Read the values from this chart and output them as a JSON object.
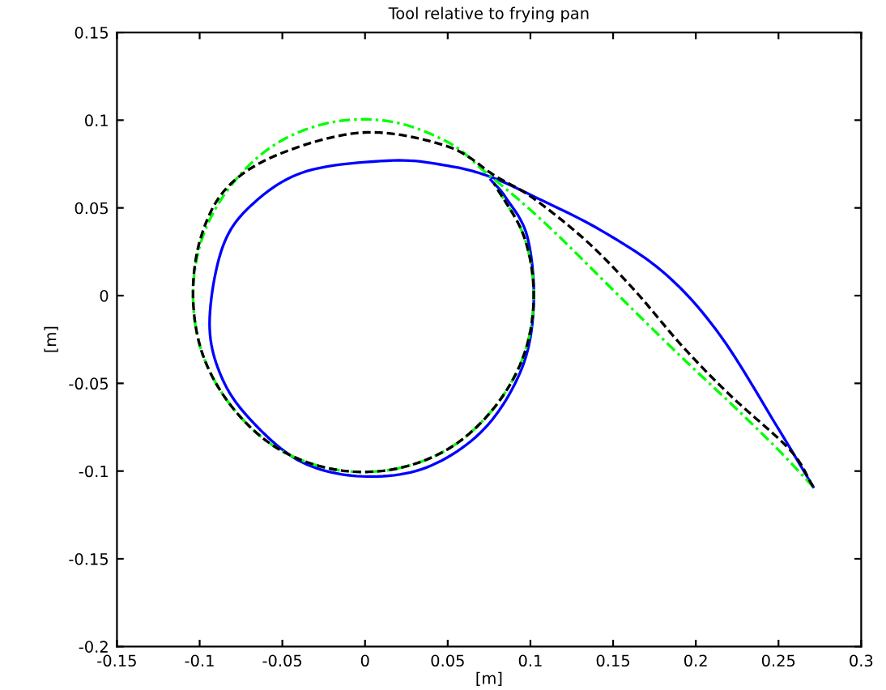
{
  "chart_data": {
    "type": "line",
    "title": "Tool relative to frying pan",
    "xlabel": "[m]",
    "ylabel": "[m]",
    "xlim": [
      -0.15,
      0.3
    ],
    "xticks": [
      -0.15,
      -0.1,
      -0.05,
      0,
      0.05,
      0.1,
      0.15,
      0.2,
      0.25,
      0.3
    ],
    "ylim": [
      -0.2,
      0.15
    ],
    "yticks": [
      -0.2,
      -0.15,
      -0.1,
      -0.05,
      0,
      0.05,
      0.1,
      0.15
    ],
    "grid": false,
    "legend": false,
    "marker": "none",
    "series": [
      {
        "color": "#0000ff",
        "line_style": "solid",
        "x": [
          0.271,
          0.25,
          0.215,
          0.182,
          0.143,
          0.101,
          0.075,
          0.05,
          0.017,
          -0.035,
          -0.067,
          -0.086,
          -0.094,
          -0.086,
          -0.067,
          -0.038,
          -0.002,
          0.037,
          0.072,
          0.095,
          0.102,
          0.098,
          0.085,
          0.076
        ],
        "values": [
          -0.109,
          -0.076,
          -0.023,
          0.012,
          0.037,
          0.057,
          0.068,
          0.074,
          0.077,
          0.071,
          0.053,
          0.028,
          -0.016,
          -0.048,
          -0.073,
          -0.095,
          -0.103,
          -0.098,
          -0.076,
          -0.041,
          -0.004,
          0.034,
          0.056,
          0.066
        ]
      },
      {
        "color": "#000000",
        "line_style": "dashed",
        "x": [
          0.271,
          0.257,
          0.221,
          0.192,
          0.163,
          0.134,
          0.101,
          0.079,
          0.05,
          0.0,
          -0.051,
          -0.083,
          -0.099,
          -0.104,
          -0.098,
          -0.08,
          -0.053,
          -0.019,
          0.017,
          0.051,
          0.078,
          0.096,
          0.102,
          0.096,
          0.078
        ],
        "values": [
          -0.109,
          -0.088,
          -0.057,
          -0.029,
          0.003,
          0.031,
          0.056,
          0.068,
          0.085,
          0.093,
          0.081,
          0.062,
          0.034,
          0,
          -0.034,
          -0.064,
          -0.087,
          -0.099,
          -0.099,
          -0.087,
          -0.064,
          -0.034,
          0,
          0.034,
          0.064
        ]
      },
      {
        "color": "#00ff00",
        "line_style": "dashdot",
        "x": [
          0.271,
          0.25,
          0.224,
          0.198,
          0.176,
          0.147,
          0.117,
          0.095,
          0.072,
          0.051,
          0.017,
          -0.019,
          -0.053,
          -0.08,
          -0.098,
          -0.104,
          -0.098,
          -0.08,
          -0.053,
          -0.019,
          0.017,
          0.051,
          0.078,
          0.096,
          0.102,
          0.096,
          0.078
        ],
        "values": [
          -0.109,
          -0.088,
          -0.064,
          -0.041,
          -0.021,
          0.006,
          0.034,
          0.053,
          0.071,
          0.087,
          0.099,
          0.099,
          0.087,
          0.064,
          0.034,
          0,
          -0.034,
          -0.064,
          -0.087,
          -0.099,
          -0.099,
          -0.087,
          -0.064,
          -0.034,
          0,
          0.034,
          0.064
        ]
      }
    ]
  }
}
